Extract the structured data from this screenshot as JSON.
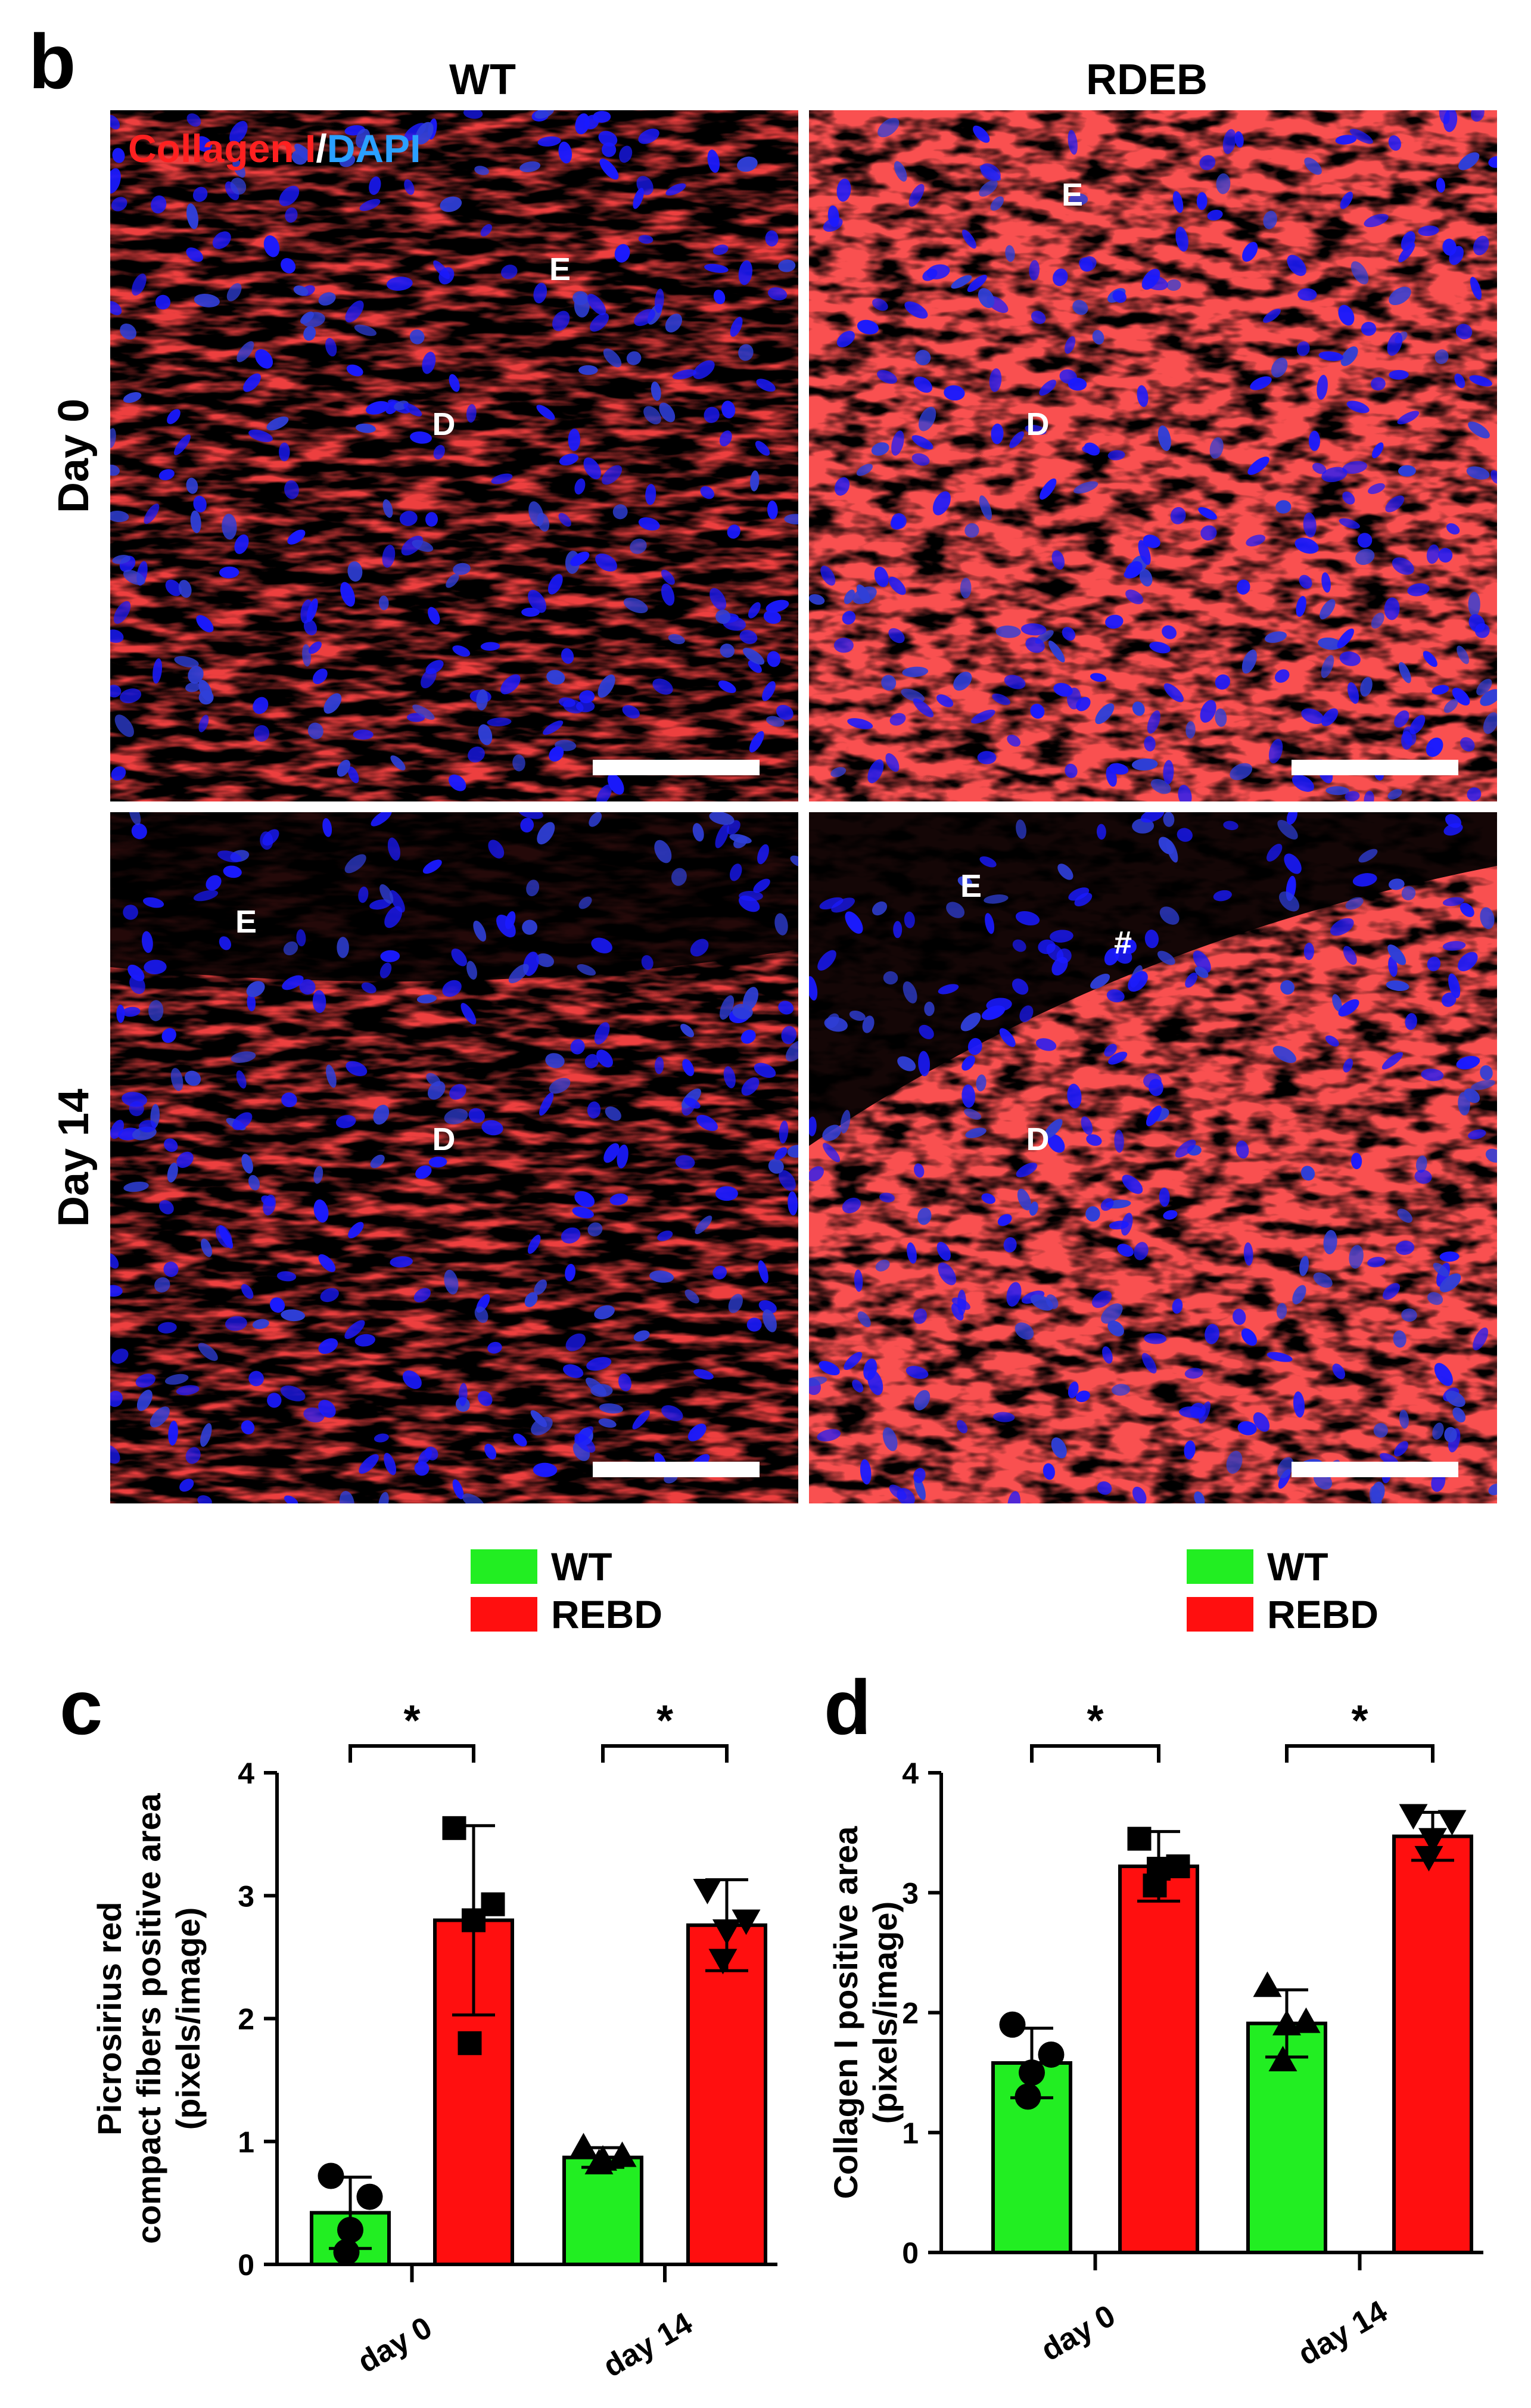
{
  "panel_b": {
    "label": "b",
    "col_headers": [
      "WT",
      "RDEB"
    ],
    "row_headers": [
      "Day 0",
      "Day 14"
    ],
    "stain_red": "Collagen I",
    "stain_sep": "/",
    "stain_blue": "DAPI",
    "stain_red_color": "#ff2020",
    "stain_blue_color": "#2aa0ff",
    "tiles": [
      {
        "markers": [
          {
            "text": "E"
          },
          {
            "text": "D"
          }
        ]
      },
      {
        "markers": [
          {
            "text": "E"
          },
          {
            "text": "D"
          }
        ]
      },
      {
        "markers": [
          {
            "text": "E"
          },
          {
            "text": "D"
          }
        ]
      },
      {
        "markers": [
          {
            "text": "E"
          },
          {
            "text": "#"
          },
          {
            "text": "D"
          }
        ]
      }
    ]
  },
  "colors": {
    "wt": "#22ee22",
    "rebd": "#ff0f0f"
  },
  "chart_data": [
    {
      "panel": "c",
      "type": "bar",
      "legend": [
        "WT",
        "REBD"
      ],
      "categories": [
        "day 0",
        "day 14"
      ],
      "ylabel_lines": [
        "Picrosirius red",
        "compact fibers positive area",
        "(pixels/image)"
      ],
      "ylim": [
        0,
        4
      ],
      "yticks": [
        "0",
        "1",
        "2",
        "3",
        "4"
      ],
      "series": [
        {
          "name": "WT",
          "values": [
            0.42,
            0.87
          ],
          "err": [
            0.29,
            0.08
          ],
          "points": [
            [
              0.72,
              0.55,
              0.28,
              0.1
            ],
            [
              0.95,
              0.88,
              0.85,
              0.82
            ]
          ],
          "markers": [
            "circle",
            "triangle"
          ]
        },
        {
          "name": "REBD",
          "values": [
            2.8,
            2.76
          ],
          "err": [
            0.77,
            0.37
          ],
          "points": [
            [
              3.55,
              2.93,
              2.8,
              1.8
            ],
            [
              3.05,
              2.8,
              2.72,
              2.48
            ]
          ],
          "markers": [
            "square",
            "invtriangle"
          ]
        }
      ],
      "significance": [
        "*",
        "*"
      ]
    },
    {
      "panel": "d",
      "type": "bar",
      "legend": [
        "WT",
        "REBD"
      ],
      "categories": [
        "day 0",
        "day 14"
      ],
      "ylabel_lines": [
        "Collagen I positive area",
        "(pixels/image)"
      ],
      "ylim": [
        0,
        4
      ],
      "yticks": [
        "0",
        "1",
        "2",
        "3",
        "4"
      ],
      "series": [
        {
          "name": "WT",
          "values": [
            1.58,
            1.91
          ],
          "err": [
            0.29,
            0.28
          ],
          "points": [
            [
              1.9,
              1.65,
              1.5,
              1.3
            ],
            [
              2.22,
              1.92,
              1.9,
              1.6
            ]
          ],
          "markers": [
            "circle",
            "triangle"
          ]
        },
        {
          "name": "REBD",
          "values": [
            3.22,
            3.47
          ],
          "err": [
            0.29,
            0.2
          ],
          "points": [
            [
              3.45,
              3.22,
              3.2,
              3.06
            ],
            [
              3.65,
              3.6,
              3.45,
              3.3
            ]
          ],
          "markers": [
            "square",
            "invtriangle"
          ]
        }
      ],
      "significance": [
        "*",
        "*"
      ]
    }
  ]
}
